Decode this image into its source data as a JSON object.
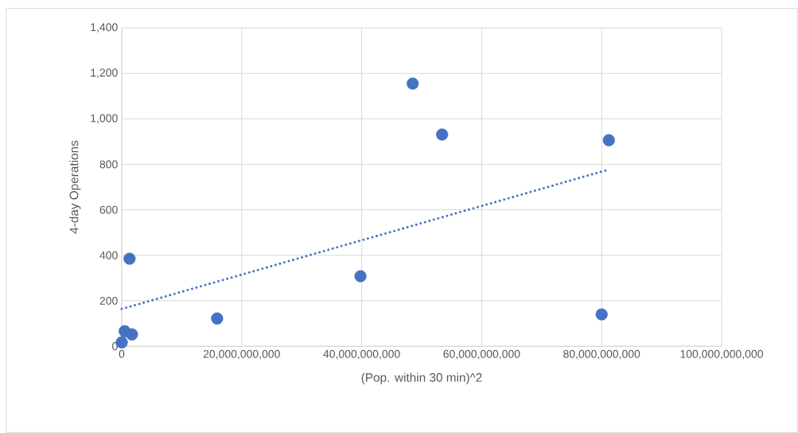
{
  "chart_data": {
    "type": "scatter",
    "xlabel": "(Pop. within 30 min)^2",
    "ylabel": "4-day Operations",
    "xlim": [
      0,
      100000000000
    ],
    "ylim": [
      0,
      1400
    ],
    "xticks": [
      {
        "value": 0,
        "label": "0"
      },
      {
        "value": 20000000000,
        "label": "20,000,000,000"
      },
      {
        "value": 40000000000,
        "label": "40,000,000,000"
      },
      {
        "value": 60000000000,
        "label": "60,000,000,000"
      },
      {
        "value": 80000000000,
        "label": "80,000,000,000"
      },
      {
        "value": 100000000000,
        "label": "100,000,000,000"
      }
    ],
    "yticks": [
      0,
      200,
      400,
      600,
      800,
      {
        "value": 1000,
        "label": "1,000"
      },
      {
        "value": 1200,
        "label": "1,200"
      },
      {
        "value": 1400,
        "label": "1,400"
      }
    ],
    "grid": true,
    "series": [
      {
        "color": "#4472c4",
        "marker": "circle",
        "x": [
          0,
          500000000,
          1700000000,
          1300000000,
          15900000000,
          39800000000,
          48500000000,
          53400000000,
          81200000000,
          80000000000
        ],
        "values": [
          17,
          66,
          52,
          385,
          122,
          308,
          1155,
          931,
          906,
          140
        ]
      },
      {
        "type": "line",
        "color": "#4472c4",
        "marker": "none",
        "line_style": "dotted",
        "x": [
          0,
          81200000000
        ],
        "values": [
          164,
          777
        ]
      }
    ]
  }
}
